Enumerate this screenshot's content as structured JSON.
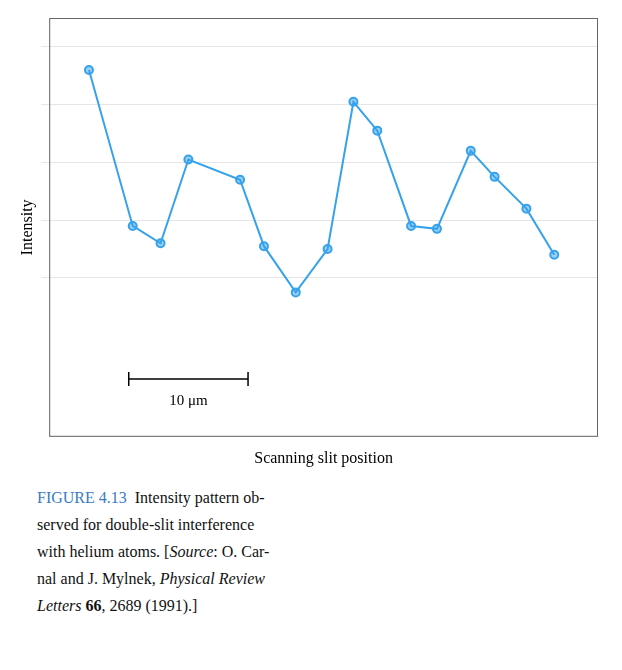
{
  "chart_data": {
    "type": "line",
    "x": [
      1.0,
      2.1,
      2.8,
      3.5,
      4.8,
      5.4,
      6.2,
      7.0,
      7.65,
      8.25,
      9.1,
      9.75,
      10.6,
      11.2,
      12.0,
      12.7
    ],
    "values": [
      8.7,
      3.3,
      2.7,
      5.6,
      4.9,
      2.6,
      1.0,
      2.5,
      7.6,
      6.6,
      3.3,
      3.2,
      5.9,
      5.0,
      3.9,
      2.3
    ],
    "xlabel": "Scanning slit position",
    "ylabel": "Intensity",
    "xlim": [
      0.0,
      13.8
    ],
    "ylim": [
      -4.0,
      10.5
    ],
    "yticks": [
      1.5,
      3.5,
      5.5,
      7.5,
      9.5
    ],
    "grid": true,
    "tick_labels": false,
    "annotations": [
      {
        "type": "scale_bar",
        "x": [
          2.0,
          5.0
        ],
        "y": -2.0,
        "text": "10 μm"
      }
    ],
    "caption": [
      [
        {
          "text": "FIGURE 4.13",
          "color": "#3a7abf"
        },
        {
          "text": "  Intensity pattern ob-"
        }
      ],
      [
        {
          "text": "served for double-slit interference"
        }
      ],
      [
        {
          "text": "with helium atoms. ["
        },
        {
          "text": "Source",
          "style": "italic"
        },
        {
          "text": ": O. Car-"
        }
      ],
      [
        {
          "text": "nal and J. Mylnek, "
        },
        {
          "text": "Physical Review",
          "style": "italic"
        }
      ],
      [
        {
          "text": "Letters",
          "style": "italic"
        },
        {
          "text": " "
        },
        {
          "text": "66",
          "style": "bold"
        },
        {
          "text": ", 2689 (1991).]"
        }
      ]
    ]
  }
}
